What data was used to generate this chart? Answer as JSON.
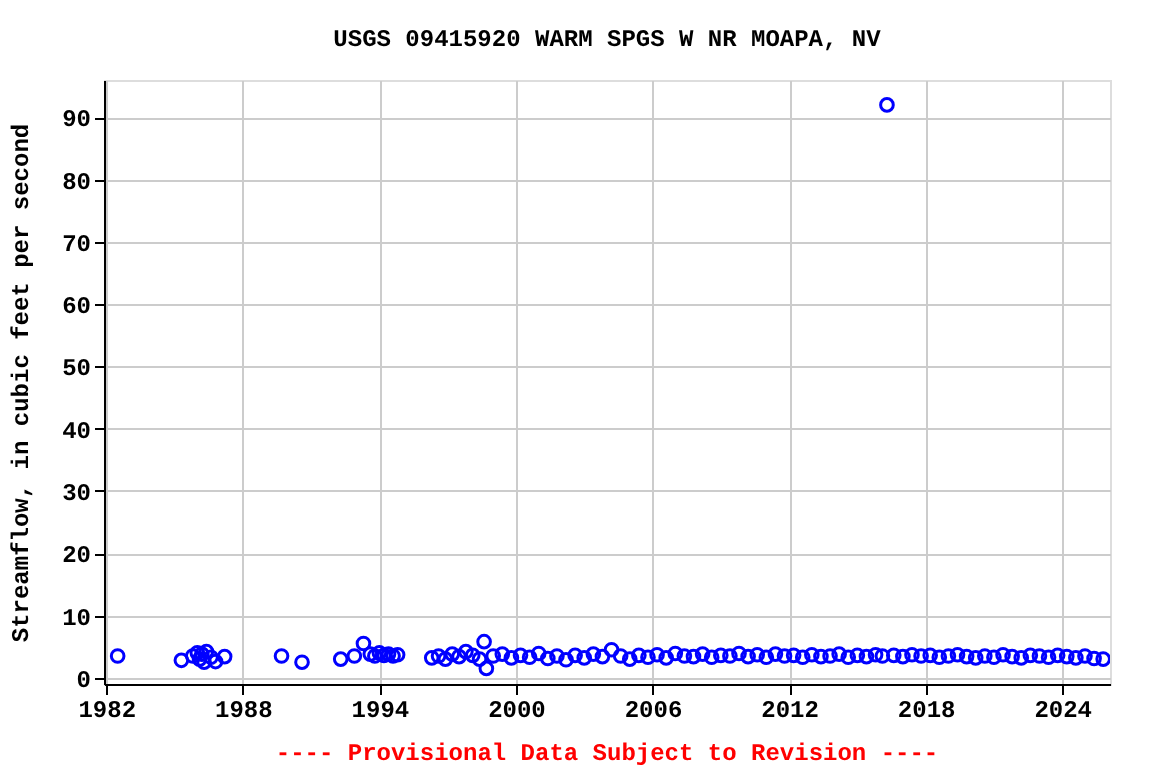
{
  "chart_data": {
    "type": "scatter",
    "title": "USGS 09415920 WARM SPGS W NR MOAPA, NV",
    "ylabel": "Streamflow, in cubic feet per second",
    "annotations": [
      "---- Provisional Data Subject to Revision ----"
    ],
    "x": [
      1982.5,
      1985.3,
      1985.8,
      1986.0,
      1986.1,
      1986.2,
      1986.3,
      1986.4,
      1986.6,
      1986.8,
      1987.2,
      1989.7,
      1990.6,
      1992.3,
      1992.9,
      1993.3,
      1993.6,
      1993.8,
      1994.0,
      1994.2,
      1994.4,
      1994.6,
      1994.8,
      1996.3,
      1996.6,
      1996.9,
      1997.2,
      1997.5,
      1997.8,
      1998.1,
      1998.4,
      1998.6,
      1998.7,
      1999.0,
      1999.4,
      1999.8,
      2000.2,
      2000.6,
      2001.0,
      2001.4,
      2001.8,
      2002.2,
      2002.6,
      2003.0,
      2003.4,
      2003.8,
      2004.2,
      2004.6,
      2005.0,
      2005.4,
      2005.8,
      2006.2,
      2006.6,
      2007.0,
      2007.4,
      2007.8,
      2008.2,
      2008.6,
      2009.0,
      2009.4,
      2009.8,
      2010.2,
      2010.6,
      2011.0,
      2011.4,
      2011.8,
      2012.2,
      2012.6,
      2013.0,
      2013.4,
      2013.8,
      2014.2,
      2014.6,
      2015.0,
      2015.4,
      2015.8,
      2016.1,
      2016.3,
      2016.6,
      2017.0,
      2017.4,
      2017.8,
      2018.2,
      2018.6,
      2019.0,
      2019.4,
      2019.8,
      2020.2,
      2020.6,
      2021.0,
      2021.4,
      2021.8,
      2022.2,
      2022.6,
      2023.0,
      2023.4,
      2023.8,
      2024.2,
      2024.6,
      2025.0,
      2025.4,
      2025.8
    ],
    "values": [
      3.5,
      2.8,
      3.5,
      4.0,
      3.0,
      3.8,
      2.5,
      4.2,
      3.3,
      2.6,
      3.4,
      3.5,
      2.5,
      3.0,
      3.5,
      5.5,
      3.8,
      3.5,
      4.0,
      3.6,
      3.8,
      3.5,
      3.7,
      3.2,
      3.5,
      3.0,
      3.8,
      3.4,
      4.2,
      3.6,
      3.0,
      5.8,
      1.5,
      3.5,
      3.8,
      3.2,
      3.6,
      3.3,
      3.9,
      3.1,
      3.5,
      2.9,
      3.6,
      3.2,
      3.8,
      3.4,
      4.5,
      3.5,
      3.0,
      3.6,
      3.3,
      3.7,
      3.2,
      3.9,
      3.5,
      3.4,
      3.8,
      3.3,
      3.6,
      3.5,
      3.9,
      3.4,
      3.7,
      3.3,
      3.8,
      3.5,
      3.6,
      3.3,
      3.7,
      3.4,
      3.5,
      3.8,
      3.3,
      3.6,
      3.4,
      3.7,
      3.5,
      92.0,
      3.6,
      3.4,
      3.7,
      3.5,
      3.6,
      3.3,
      3.5,
      3.7,
      3.4,
      3.2,
      3.5,
      3.3,
      3.7,
      3.4,
      3.2,
      3.6,
      3.5,
      3.3,
      3.6,
      3.4,
      3.2,
      3.5,
      3.1,
      3.0
    ],
    "color": "#0000ff",
    "marker": "circle",
    "xlim": [
      1981.9,
      2026.1
    ],
    "xticks": [
      1982,
      1988,
      1994,
      2000,
      2006,
      2012,
      2018,
      2024
    ],
    "ylim": [
      -1,
      96
    ],
    "yticks": [
      0,
      10,
      20,
      30,
      40,
      50,
      60,
      70,
      80,
      90
    ],
    "grid": true
  }
}
